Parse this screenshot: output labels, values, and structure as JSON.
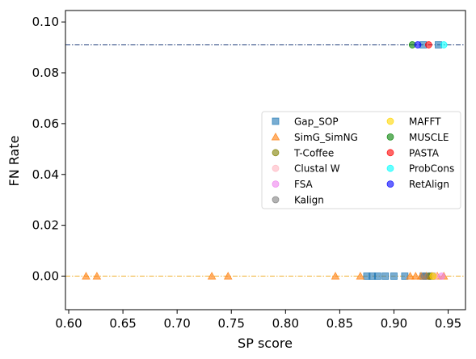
{
  "chart_data": {
    "type": "scatter",
    "title": "",
    "xlabel": "SP score",
    "ylabel": "FN Rate",
    "xlim": [
      0.597,
      0.966
    ],
    "ylim": [
      -0.0132,
      0.1045
    ],
    "xticks": [
      0.6,
      0.65,
      0.7,
      0.75,
      0.8,
      0.85,
      0.9,
      0.95
    ],
    "xtick_labels": [
      "0.60",
      "0.65",
      "0.70",
      "0.75",
      "0.80",
      "0.85",
      "0.90",
      "0.95"
    ],
    "yticks": [
      0.0,
      0.02,
      0.04,
      0.06,
      0.08,
      0.1
    ],
    "ytick_labels": [
      "0.00",
      "0.02",
      "0.04",
      "0.06",
      "0.08",
      "0.10"
    ],
    "grid": false,
    "legend_placement": "center-right",
    "reference_lines": [
      {
        "y": 0.091,
        "color": "#1f3d7a",
        "style": "dashdot"
      },
      {
        "y": 0.0,
        "color": "#f0b030",
        "style": "dashdot"
      }
    ],
    "series": [
      {
        "name": "Gap_SOP",
        "marker": "square",
        "color": "#1f77b4",
        "points": [
          [
            0.875,
            0.0
          ],
          [
            0.88,
            0.0
          ],
          [
            0.885,
            0.0
          ],
          [
            0.892,
            0.0
          ],
          [
            0.9,
            0.0
          ],
          [
            0.91,
            0.0
          ],
          [
            0.927,
            0.0
          ],
          [
            0.93,
            0.0
          ],
          [
            0.935,
            0.0
          ],
          [
            0.927,
            0.091
          ],
          [
            0.941,
            0.091
          ]
        ]
      },
      {
        "name": "SimG_SimNG",
        "marker": "triangle",
        "color": "#ff7f0e",
        "points": [
          [
            0.616,
            0.0
          ],
          [
            0.626,
            0.0
          ],
          [
            0.732,
            0.0
          ],
          [
            0.747,
            0.0
          ],
          [
            0.846,
            0.0
          ],
          [
            0.869,
            0.0
          ],
          [
            0.915,
            0.0
          ],
          [
            0.92,
            0.0
          ],
          [
            0.925,
            0.0
          ],
          [
            0.93,
            0.0
          ],
          [
            0.935,
            0.0
          ],
          [
            0.94,
            0.0
          ],
          [
            0.946,
            0.0
          ]
        ]
      },
      {
        "name": "T-Coffee",
        "marker": "circle",
        "color": "#808000",
        "points": [
          [
            0.933,
            0.0
          ]
        ]
      },
      {
        "name": "Clustal W",
        "marker": "circle",
        "color": "#ffb6c1",
        "points": [
          [
            0.938,
            0.0
          ]
        ]
      },
      {
        "name": "FSA",
        "marker": "circle",
        "color": "#ee82ee",
        "points": [
          [
            0.944,
            0.0
          ]
        ]
      },
      {
        "name": "Kalign",
        "marker": "circle",
        "color": "#808080",
        "points": [
          [
            0.928,
            0.0
          ]
        ]
      },
      {
        "name": "MAFFT",
        "marker": "circle",
        "color": "#ffd700",
        "points": [
          [
            0.936,
            0.0
          ]
        ]
      },
      {
        "name": "MUSCLE",
        "marker": "circle",
        "color": "#008000",
        "points": [
          [
            0.917,
            0.091
          ]
        ]
      },
      {
        "name": "PASTA",
        "marker": "circle",
        "color": "#ff0000",
        "points": [
          [
            0.932,
            0.091
          ]
        ]
      },
      {
        "name": "ProbCons",
        "marker": "circle",
        "color": "#00ffff",
        "points": [
          [
            0.946,
            0.091
          ]
        ]
      },
      {
        "name": "RetAlign",
        "marker": "circle",
        "color": "#0000ff",
        "points": [
          [
            0.922,
            0.091
          ]
        ]
      }
    ]
  }
}
